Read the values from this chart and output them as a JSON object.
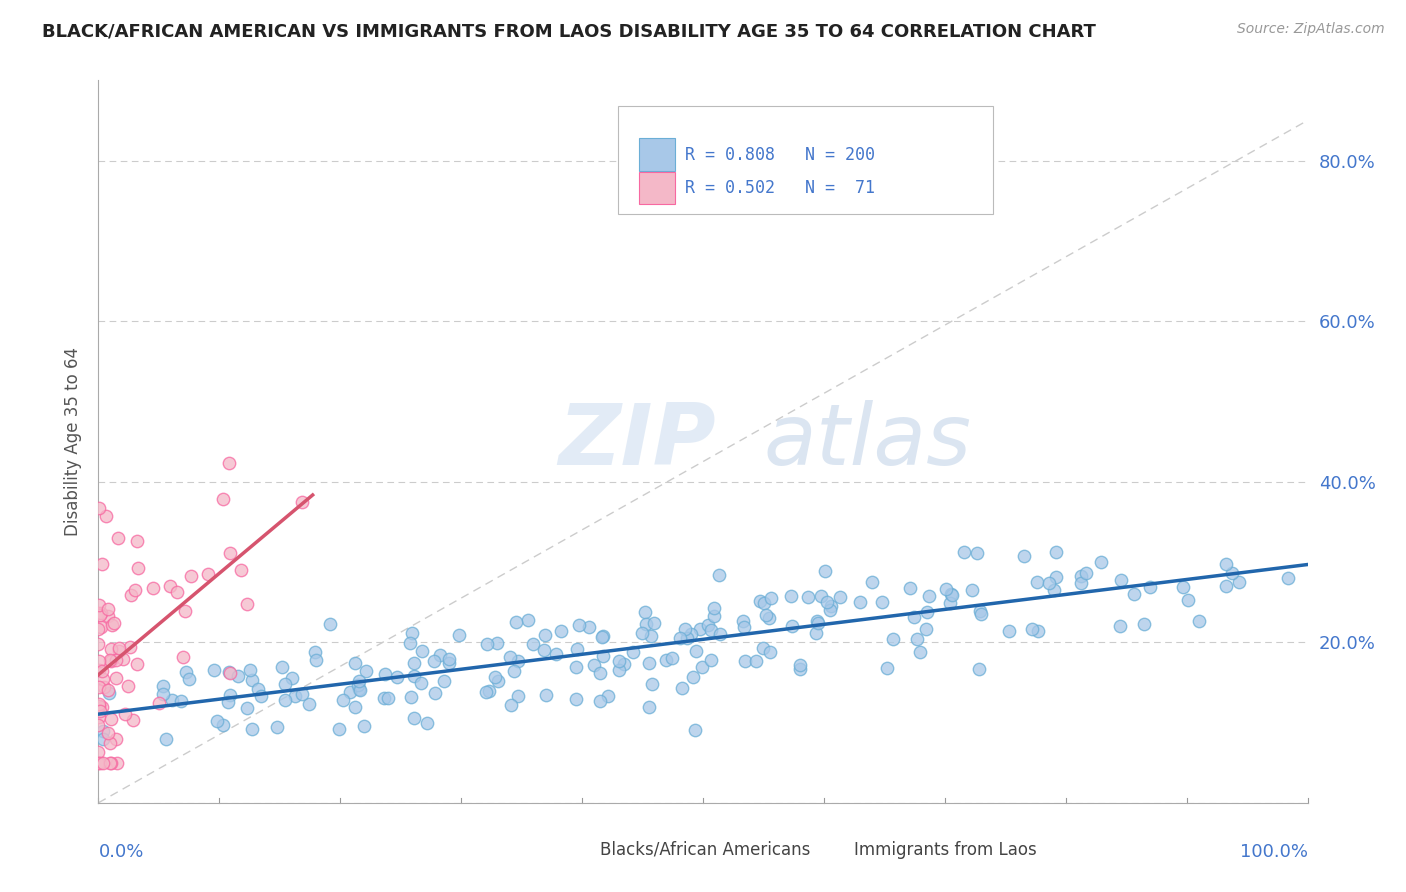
{
  "title": "BLACK/AFRICAN AMERICAN VS IMMIGRANTS FROM LAOS DISABILITY AGE 35 TO 64 CORRELATION CHART",
  "source": "Source: ZipAtlas.com",
  "ylabel": "Disability Age 35 to 64",
  "watermark_zip": "ZIP",
  "watermark_atlas": "atlas",
  "blue_color": "#a8c8e8",
  "blue_edge_color": "#6baed6",
  "pink_color": "#f4b8c8",
  "pink_edge_color": "#f768a1",
  "blue_line_color": "#2166ac",
  "pink_line_color": "#d6546e",
  "diagonal_color": "#cccccc",
  "title_color": "#222222",
  "axis_label_color": "#4477cc",
  "legend_label1": "Blacks/African Americans",
  "legend_label2": "Immigrants from Laos",
  "blue_R": 0.808,
  "blue_N": 200,
  "pink_R": 0.502,
  "pink_N": 71,
  "xlim": [
    0.0,
    1.0
  ],
  "ylim": [
    0.0,
    0.9
  ],
  "ytick_vals": [
    0.0,
    0.2,
    0.4,
    0.6,
    0.8
  ],
  "ytick_labels": [
    "",
    "20.0%",
    "40.0%",
    "60.0%",
    "80.0%"
  ],
  "marker_size": 80,
  "marker_lw": 1.0
}
